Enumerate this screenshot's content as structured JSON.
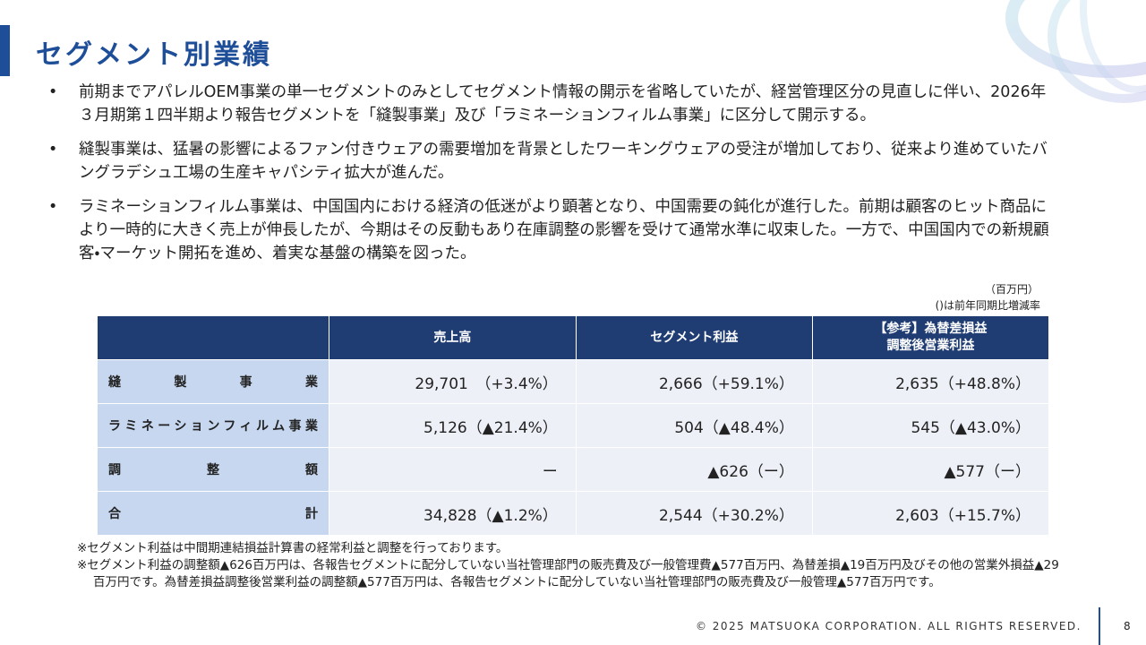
{
  "title": "セグメント別業績",
  "bullets": [
    "前期までアパレルOEM事業の単一セグメントのみとしてセグメント情報の開示を省略していたが、経営管理区分の見直しに伴い、2026年３月期第１四半期より報告セグメントを「縫製事業」及び「ラミネーションフィルム事業」に区分して開示する。",
    "縫製事業は、猛暑の影響によるファン付きウェアの需要増加を背景としたワーキングウェアの受注が増加しており、従来より進めていたバングラデシュ工場の生産キャパシティ拡大が進んだ。",
    "ラミネーションフィルム事業は、中国国内における経済の低迷がより顕著となり、中国需要の鈍化が進行した。前期は顧客のヒット商品により一時的に大きく売上が伸長したが、今期はその反動もあり在庫調整の影響を受けて通常水準に収束した。一方で、中国国内での新規顧客・マーケット開拓を進め、着実な基盤の構築を図った。"
  ],
  "unit_note": "（百万円）",
  "change_note": "()は前年同期比増減率",
  "table": {
    "headers": [
      [
        "売上高"
      ],
      [
        "セグメント利益"
      ],
      [
        "【参考】為替差損益",
        "調整後営業利益"
      ]
    ],
    "rows": [
      {
        "label": "縫製事業",
        "cells": [
          "29,701　（+3.4%）",
          "2,666（+59.1%）",
          "2,635（+48.8%）"
        ]
      },
      {
        "label": "ラミネーションフィルム事業",
        "cells": [
          "5,126（▲21.4%）",
          "504（▲48.4%）",
          "545（▲43.0%）"
        ]
      },
      {
        "label": "調整額",
        "cells": [
          "ー",
          "▲626（ー）",
          "▲577（ー）"
        ]
      },
      {
        "label": "合計",
        "cells": [
          "34,828（▲1.2%）",
          "2,544（+30.2%）",
          "2,603（+15.7%）"
        ]
      }
    ]
  },
  "footnotes": [
    "※セグメント利益は中間期連結損益計算書の経常利益と調整を行っております。",
    "※セグメント利益の調整額▲626百万円は、各報告セグメントに配分していない当社管理部門の販売費及び一般管理費▲577百万円、為替差損▲19百万円及びその他の営業外損益▲29百万円です。為替差損益調整後営業利益の調整額▲577百万円は、各報告セグメントに配分していない当社管理部門の販売費及び一般管理▲577百万円です。"
  ],
  "footer": {
    "copyright": "© 2025 MATSUOKA CORPORATION. ALL RIGHTS RESERVED.",
    "page": "8"
  }
}
